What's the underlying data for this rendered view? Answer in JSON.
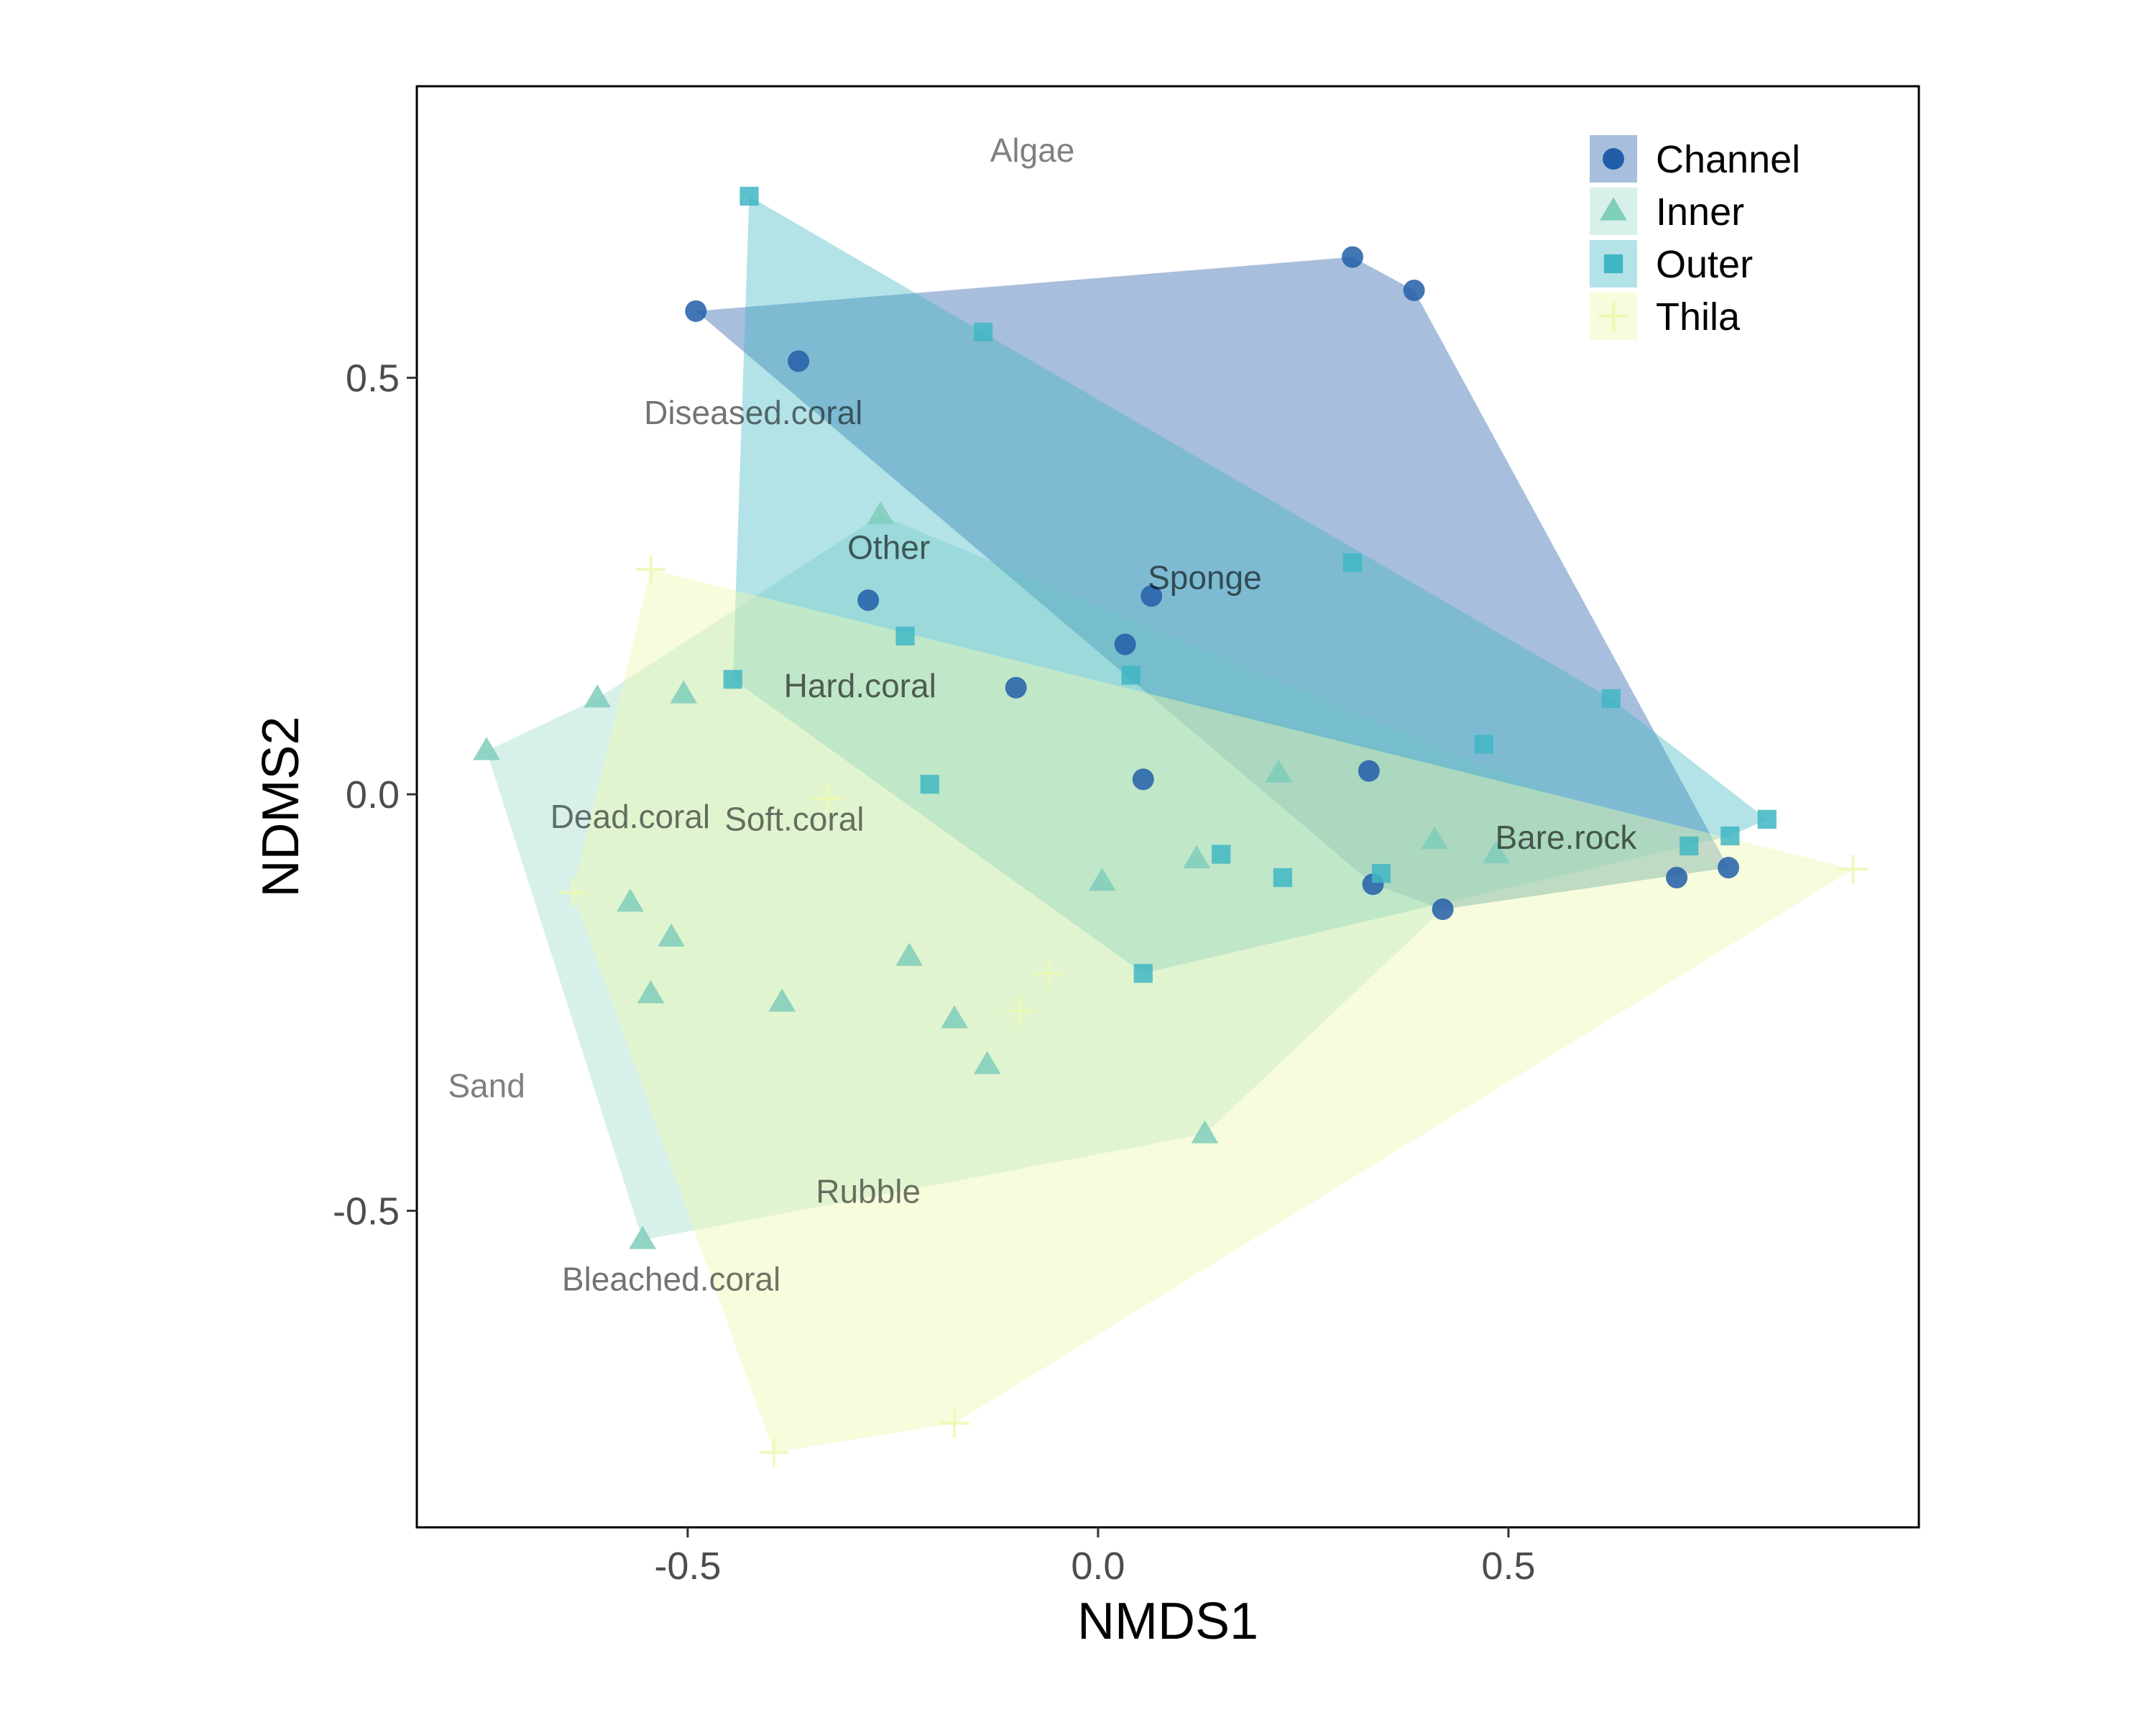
{
  "chart_data": {
    "type": "scatter",
    "title": "",
    "xlabel": "NMDS1",
    "ylabel": "NDMS2",
    "xlim": [
      -0.83,
      1.0
    ],
    "ylim": [
      -0.88,
      0.85
    ],
    "x_ticks": [
      -0.5,
      0.0,
      0.5
    ],
    "x_tick_labels": [
      "-0.5",
      "0.0",
      "0.5"
    ],
    "y_ticks": [
      -0.5,
      0.0,
      0.5
    ],
    "y_tick_labels": [
      "-0.5",
      "0.0",
      "0.5"
    ],
    "grid": false,
    "legend_position": "top-right",
    "series": [
      {
        "name": "Channel",
        "marker": "circle",
        "color": "#225ea8",
        "points": [
          [
            -0.49,
            0.58
          ],
          [
            -0.365,
            0.52
          ],
          [
            0.31,
            0.645
          ],
          [
            0.385,
            0.605
          ],
          [
            -0.28,
            0.233
          ],
          [
            0.065,
            0.238
          ],
          [
            0.033,
            0.18
          ],
          [
            -0.1,
            0.128
          ],
          [
            0.055,
            0.018
          ],
          [
            0.33,
            0.028
          ],
          [
            0.335,
            -0.108
          ],
          [
            0.42,
            -0.138
          ],
          [
            0.705,
            -0.1
          ],
          [
            0.768,
            -0.088
          ]
        ],
        "hull": [
          [
            -0.49,
            0.58
          ],
          [
            0.31,
            0.645
          ],
          [
            0.385,
            0.605
          ],
          [
            0.768,
            -0.088
          ],
          [
            0.42,
            -0.138
          ],
          [
            0.335,
            -0.108
          ]
        ]
      },
      {
        "name": "Inner",
        "marker": "triangle",
        "color": "#7fcdbb",
        "points": [
          [
            -0.745,
            0.052
          ],
          [
            -0.61,
            0.115
          ],
          [
            -0.505,
            0.12
          ],
          [
            -0.265,
            0.335
          ],
          [
            -0.57,
            -0.13
          ],
          [
            -0.52,
            -0.172
          ],
          [
            -0.545,
            -0.24
          ],
          [
            -0.385,
            -0.25
          ],
          [
            -0.23,
            -0.195
          ],
          [
            -0.175,
            -0.27
          ],
          [
            -0.135,
            -0.325
          ],
          [
            0.005,
            -0.105
          ],
          [
            0.12,
            -0.078
          ],
          [
            0.22,
            0.025
          ],
          [
            0.41,
            -0.055
          ],
          [
            0.485,
            -0.072
          ],
          [
            0.13,
            -0.408
          ],
          [
            -0.555,
            -0.535
          ]
        ],
        "hull": [
          [
            -0.745,
            0.052
          ],
          [
            -0.61,
            0.115
          ],
          [
            -0.265,
            0.335
          ],
          [
            0.768,
            -0.088
          ],
          [
            0.42,
            -0.138
          ],
          [
            0.13,
            -0.408
          ],
          [
            -0.555,
            -0.535
          ]
        ]
      },
      {
        "name": "Outer",
        "marker": "square",
        "color": "#41b6c4",
        "points": [
          [
            -0.425,
            0.718
          ],
          [
            -0.14,
            0.555
          ],
          [
            0.31,
            0.278
          ],
          [
            0.625,
            0.115
          ],
          [
            0.47,
            0.06
          ],
          [
            0.815,
            -0.03
          ],
          [
            0.77,
            -0.05
          ],
          [
            0.72,
            -0.062
          ],
          [
            -0.445,
            0.138
          ],
          [
            -0.235,
            0.19
          ],
          [
            0.04,
            0.143
          ],
          [
            -0.205,
            0.012
          ],
          [
            0.15,
            -0.072
          ],
          [
            0.345,
            -0.095
          ],
          [
            0.225,
            -0.1
          ],
          [
            0.055,
            -0.215
          ]
        ],
        "hull": [
          [
            -0.425,
            0.718
          ],
          [
            0.625,
            0.115
          ],
          [
            0.815,
            -0.03
          ],
          [
            0.77,
            -0.05
          ],
          [
            0.055,
            -0.215
          ],
          [
            -0.445,
            0.138
          ]
        ]
      },
      {
        "name": "Thila",
        "marker": "plus",
        "color": "#edf8b1",
        "points": [
          [
            -0.545,
            0.27
          ],
          [
            -0.64,
            -0.118
          ],
          [
            -0.33,
            -0.005
          ],
          [
            -0.06,
            -0.215
          ],
          [
            -0.095,
            -0.26
          ],
          [
            0.92,
            -0.09
          ],
          [
            -0.175,
            -0.755
          ],
          [
            -0.395,
            -0.79
          ]
        ],
        "hull": [
          [
            -0.545,
            0.27
          ],
          [
            0.92,
            -0.09
          ],
          [
            -0.175,
            -0.755
          ],
          [
            -0.395,
            -0.79
          ],
          [
            -0.64,
            -0.118
          ]
        ]
      }
    ],
    "variable_labels": [
      {
        "label": "Algae",
        "x": -0.08,
        "y": 0.77,
        "alpha": 0.5
      },
      {
        "label": "Diseased.coral",
        "x": -0.42,
        "y": 0.455,
        "alpha": 0.55
      },
      {
        "label": "Other",
        "x": -0.255,
        "y": 0.293,
        "alpha": 0.6
      },
      {
        "label": "Sponge",
        "x": 0.13,
        "y": 0.257,
        "alpha": 0.6
      },
      {
        "label": "Hard.coral",
        "x": -0.29,
        "y": 0.127,
        "alpha": 0.6
      },
      {
        "label": "Dead.coral",
        "x": -0.57,
        "y": -0.03,
        "alpha": 0.55
      },
      {
        "label": "Soft.coral",
        "x": -0.37,
        "y": -0.033,
        "alpha": 0.55
      },
      {
        "label": "Bare.rock",
        "x": 0.57,
        "y": -0.055,
        "alpha": 0.6
      },
      {
        "label": "Sand",
        "x": -0.745,
        "y": -0.353,
        "alpha": 0.5
      },
      {
        "label": "Rubble",
        "x": -0.28,
        "y": -0.48,
        "alpha": 0.55
      },
      {
        "label": "Bleached.coral",
        "x": -0.52,
        "y": -0.585,
        "alpha": 0.55
      }
    ]
  }
}
